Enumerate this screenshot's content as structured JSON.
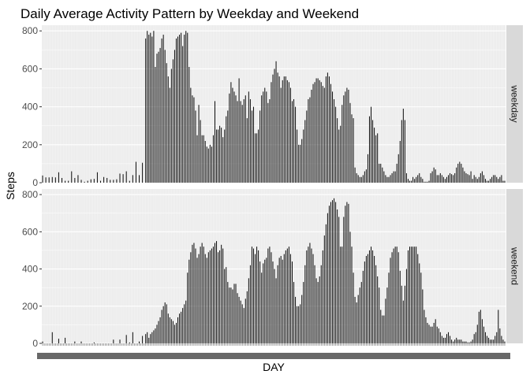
{
  "chart_data": {
    "type": "bar",
    "title": "Daily Average Activity Pattern by Weekday and Weekend",
    "xlabel": "DAY",
    "ylabel": "Steps",
    "ylim": [
      0,
      830
    ],
    "yticks": [
      "0",
      "200",
      "400",
      "600",
      "800"
    ],
    "grid": true,
    "facet": "rows",
    "bars_per_panel": 288,
    "panels": [
      {
        "name": "weekday",
        "values": [
          38,
          0,
          28,
          0,
          28,
          0,
          30,
          0,
          28,
          0,
          55,
          0,
          25,
          0,
          10,
          0,
          10,
          0,
          60,
          0,
          25,
          0,
          40,
          0,
          15,
          0,
          5,
          0,
          10,
          0,
          18,
          0,
          20,
          0,
          55,
          0,
          10,
          0,
          30,
          0,
          25,
          0,
          15,
          0,
          15,
          0,
          18,
          0,
          48,
          0,
          45,
          0,
          60,
          0,
          10,
          0,
          40,
          0,
          110,
          0,
          40,
          0,
          105,
          0,
          760,
          800,
          780,
          790,
          770,
          800,
          610,
          680,
          690,
          710,
          760,
          780,
          700,
          630,
          560,
          500,
          600,
          650,
          700,
          760,
          770,
          780,
          790,
          720,
          780,
          800,
          790,
          610,
          500,
          460,
          450,
          380,
          250,
          410,
          330,
          250,
          250,
          220,
          190,
          180,
          200,
          190,
          250,
          430,
          280,
          280,
          300,
          290,
          240,
          280,
          350,
          380,
          470,
          530,
          500,
          480,
          460,
          430,
          550,
          430,
          410,
          440,
          460,
          340,
          480,
          440,
          380,
          400,
          260,
          260,
          280,
          380,
          460,
          480,
          500,
          480,
          420,
          440,
          530,
          570,
          600,
          640,
          580,
          560,
          500,
          540,
          560,
          560,
          540,
          530,
          500,
          430,
          440,
          400,
          280,
          200,
          200,
          230,
          280,
          330,
          380,
          440,
          450,
          490,
          520,
          530,
          550,
          550,
          540,
          530,
          510,
          500,
          560,
          580,
          560,
          520,
          480,
          440,
          400,
          340,
          280,
          300,
          410,
          460,
          480,
          500,
          490,
          420,
          360,
          340,
          80,
          50,
          40,
          30,
          30,
          40,
          60,
          70,
          150,
          350,
          400,
          330,
          290,
          250,
          260,
          100,
          100,
          80,
          60,
          40,
          30,
          30,
          40,
          50,
          60,
          60,
          100,
          150,
          220,
          330,
          390,
          330,
          50,
          20,
          10,
          10,
          30,
          20,
          30,
          40,
          50,
          30,
          20,
          5,
          5,
          5,
          10,
          50,
          60,
          80,
          70,
          40,
          40,
          50,
          40,
          30,
          20,
          30,
          40,
          50,
          45,
          40,
          50,
          80,
          100,
          110,
          100,
          80,
          60,
          50,
          45,
          40,
          60,
          20,
          40,
          30,
          20,
          30,
          50,
          60,
          40,
          20,
          10,
          10,
          20,
          30,
          40,
          40,
          30,
          20,
          30,
          40,
          10,
          10
        ]
      },
      {
        "name": "weekend",
        "values": [
          10,
          0,
          0,
          0,
          0,
          0,
          60,
          0,
          0,
          0,
          25,
          0,
          0,
          0,
          30,
          0,
          0,
          0,
          0,
          0,
          10,
          0,
          0,
          0,
          10,
          0,
          0,
          0,
          0,
          0,
          0,
          0,
          5,
          0,
          0,
          0,
          0,
          0,
          0,
          0,
          0,
          0,
          0,
          0,
          20,
          0,
          0,
          0,
          20,
          0,
          0,
          0,
          45,
          0,
          5,
          0,
          60,
          0,
          0,
          0,
          10,
          0,
          40,
          0,
          50,
          60,
          30,
          50,
          60,
          70,
          80,
          100,
          120,
          140,
          180,
          200,
          220,
          210,
          160,
          140,
          130,
          120,
          100,
          110,
          140,
          160,
          170,
          190,
          210,
          230,
          380,
          450,
          490,
          530,
          540,
          510,
          460,
          480,
          520,
          540,
          520,
          480,
          460,
          490,
          500,
          510,
          520,
          540,
          550,
          490,
          500,
          530,
          510,
          400,
          410,
          330,
          300,
          300,
          290,
          320,
          320,
          270,
          250,
          230,
          210,
          190,
          240,
          280,
          350,
          420,
          520,
          510,
          480,
          520,
          500,
          440,
          380,
          430,
          450,
          460,
          510,
          520,
          490,
          440,
          400,
          350,
          420,
          460,
          470,
          450,
          480,
          500,
          510,
          520,
          480,
          440,
          330,
          250,
          200,
          200,
          210,
          260,
          330,
          420,
          500,
          520,
          540,
          510,
          480,
          420,
          350,
          330,
          360,
          420,
          500,
          580,
          640,
          700,
          740,
          760,
          770,
          780,
          760,
          720,
          680,
          520,
          520,
          680,
          740,
          760,
          750,
          600,
          520,
          380,
          250,
          220,
          260,
          300,
          330,
          390,
          440,
          470,
          480,
          500,
          520,
          500,
          470,
          420,
          360,
          300,
          180,
          150,
          150,
          240,
          300,
          380,
          460,
          490,
          510,
          520,
          520,
          490,
          390,
          310,
          230,
          310,
          400,
          500,
          520,
          520,
          520,
          520,
          520,
          480,
          430,
          380,
          290,
          180,
          140,
          110,
          100,
          90,
          90,
          110,
          130,
          90,
          80,
          60,
          40,
          30,
          30,
          50,
          60,
          40,
          20,
          10,
          20,
          30,
          20,
          20,
          20,
          10,
          10,
          10,
          5,
          5,
          10,
          20,
          50,
          60,
          100,
          170,
          180,
          130,
          90,
          60,
          40,
          30,
          20,
          20,
          20,
          40,
          60,
          180,
          80,
          40,
          20,
          10
        ]
      }
    ]
  }
}
